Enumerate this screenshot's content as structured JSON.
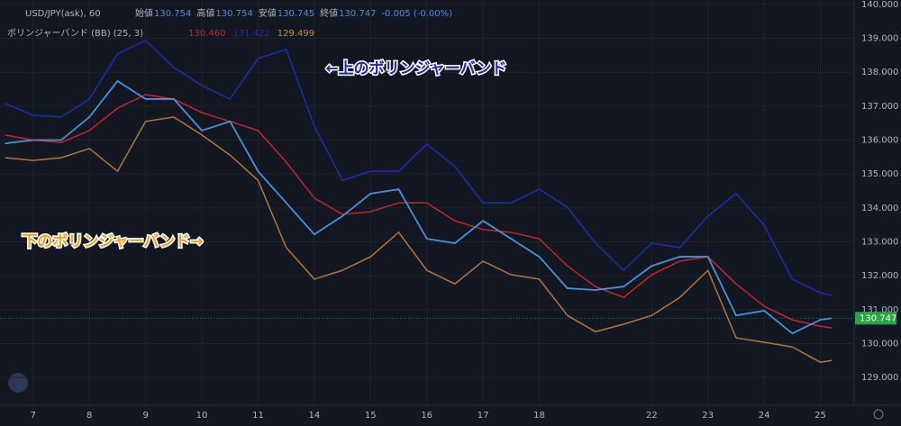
{
  "chart_data": {
    "type": "line",
    "title": "USD/JPY(ask), 60",
    "ohlc": [
      {
        "label": "始値",
        "value": "130.754"
      },
      {
        "label": "高値",
        "value": "130.754"
      },
      {
        "label": "安値",
        "value": "130.745"
      },
      {
        "label": "終値",
        "value": "130.747"
      }
    ],
    "change": "-0.005 (-0.00%)",
    "indicator": {
      "label": "ボリンジャーバンド (BB) (25, 3)",
      "values": [
        {
          "text": "130.460",
          "color": "#c0282b"
        },
        {
          "text": "131.422",
          "color": "#1f2aa8"
        },
        {
          "text": "129.499",
          "color": "#d08a2a"
        }
      ]
    },
    "annotations": [
      {
        "text": "←上のボリンジャーバンド",
        "x": 5.2,
        "y": 138.1,
        "color": "#1f2aa8"
      },
      {
        "text": "下のボリンジャーバンド→",
        "x": -0.2,
        "y": 133.0,
        "color": "#f0a020"
      }
    ],
    "x": [
      -0.5,
      0,
      0.5,
      1,
      1.5,
      2,
      2.5,
      3,
      3.5,
      4,
      4.5,
      5,
      5.5,
      6,
      6.5,
      7,
      7.5,
      8,
      8.5,
      9,
      9.5,
      10,
      10.5,
      11,
      11.5,
      12,
      12.5,
      13,
      13.5,
      14,
      14.2
    ],
    "series": [
      {
        "color": "#1f2aa8",
        "values": [
          137.08,
          136.73,
          136.68,
          137.21,
          138.54,
          138.94,
          138.14,
          137.61,
          137.21,
          138.41,
          138.67,
          136.41,
          134.81,
          135.08,
          135.08,
          135.88,
          135.22,
          134.15,
          134.15,
          134.55,
          134.02,
          132.96,
          132.16,
          132.96,
          132.83,
          133.76,
          134.42,
          133.49,
          131.9,
          131.5,
          131.42
        ]
      },
      {
        "color": "#c0282b",
        "values": [
          136.15,
          136.0,
          135.93,
          136.28,
          136.94,
          137.34,
          137.21,
          136.81,
          136.55,
          136.28,
          135.35,
          134.29,
          133.81,
          133.89,
          134.15,
          134.15,
          133.62,
          133.36,
          133.28,
          133.09,
          132.29,
          131.68,
          131.36,
          132.03,
          132.43,
          132.56,
          131.76,
          131.1,
          130.7,
          130.51,
          130.46
        ]
      },
      {
        "color": "#b0763a",
        "values": [
          135.48,
          135.4,
          135.48,
          135.75,
          135.08,
          136.55,
          136.68,
          136.15,
          135.56,
          134.81,
          132.83,
          131.9,
          132.16,
          132.56,
          133.28,
          132.16,
          131.76,
          132.43,
          132.03,
          131.9,
          130.83,
          130.35,
          130.57,
          130.83,
          131.36,
          132.16,
          130.17,
          130.04,
          129.9,
          129.45,
          129.5
        ]
      },
      {
        "color": "#4a90d9",
        "values": [
          135.9,
          136.0,
          136.0,
          136.68,
          137.74,
          137.21,
          137.21,
          136.28,
          136.55,
          135.08,
          134.15,
          133.22,
          133.76,
          134.42,
          134.55,
          133.09,
          132.96,
          133.62,
          133.09,
          132.56,
          131.63,
          131.58,
          131.68,
          132.29,
          132.56,
          132.56,
          130.83,
          130.97,
          130.3,
          130.7,
          130.747
        ]
      }
    ],
    "last_price": 130.747,
    "xlim": [
      -0.59,
      14.6
    ],
    "ylim": [
      128.18,
      140.13
    ],
    "xticks": [
      {
        "value": 0,
        "label": "7"
      },
      {
        "value": 1,
        "label": "8"
      },
      {
        "value": 2,
        "label": "9"
      },
      {
        "value": 3,
        "label": "10"
      },
      {
        "value": 4,
        "label": "11"
      },
      {
        "value": 5,
        "label": "14"
      },
      {
        "value": 6,
        "label": "15"
      },
      {
        "value": 7,
        "label": "16"
      },
      {
        "value": 8,
        "label": "17"
      },
      {
        "value": 9,
        "label": "18"
      },
      {
        "value": 11,
        "label": "22"
      },
      {
        "value": 12,
        "label": "23"
      },
      {
        "value": 13,
        "label": "24"
      },
      {
        "value": 14,
        "label": "25"
      }
    ],
    "yticks": [
      {
        "value": 129,
        "label": "129.000"
      },
      {
        "value": 130,
        "label": "130.000"
      },
      {
        "value": 131,
        "label": "131.000"
      },
      {
        "value": 132,
        "label": "132.000"
      },
      {
        "value": 133,
        "label": "133.000"
      },
      {
        "value": 134,
        "label": "134.000"
      },
      {
        "value": 135,
        "label": "135.000"
      },
      {
        "value": 136,
        "label": "136.000"
      },
      {
        "value": 137,
        "label": "137.000"
      },
      {
        "value": 138,
        "label": "138.000"
      },
      {
        "value": 139,
        "label": "139.000"
      },
      {
        "value": 140,
        "label": "140.000"
      }
    ],
    "grid": true
  }
}
